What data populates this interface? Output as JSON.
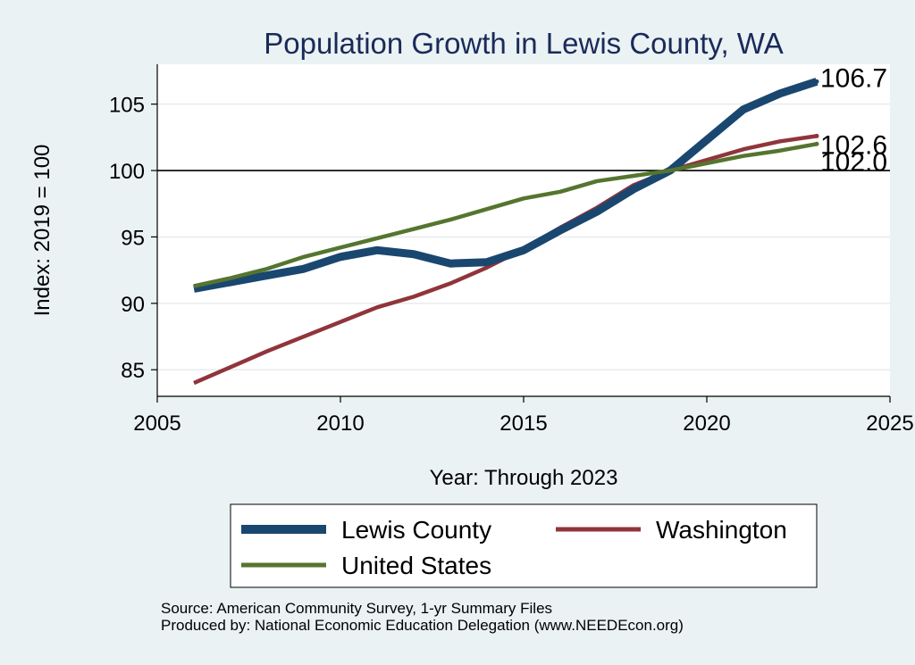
{
  "chart_data": {
    "type": "line",
    "title": "Population Growth in Lewis County, WA",
    "xlabel": "Year: Through 2023",
    "ylabel": "Index: 2019 = 100",
    "xlim": [
      2005,
      2025
    ],
    "ylim": [
      83,
      108
    ],
    "xticks": [
      2005,
      2010,
      2015,
      2020,
      2025
    ],
    "yticks": [
      85,
      90,
      95,
      100,
      105
    ],
    "grid": true,
    "reference_line": 100,
    "legend_position": "bottom",
    "x": [
      2006,
      2007,
      2008,
      2009,
      2010,
      2011,
      2012,
      2013,
      2014,
      2015,
      2016,
      2017,
      2018,
      2019,
      2021,
      2022,
      2023
    ],
    "series": [
      {
        "name": "Lewis  County",
        "color": "#1a476f",
        "values": [
          91.1,
          91.6,
          92.1,
          92.6,
          93.5,
          94.0,
          93.7,
          93.0,
          93.1,
          94.0,
          95.5,
          96.9,
          98.6,
          100.0,
          104.6,
          105.8,
          106.7
        ],
        "end_label": "106.7"
      },
      {
        "name": "Washington",
        "color": "#90353b",
        "values": [
          84.0,
          85.2,
          86.4,
          87.5,
          88.6,
          89.7,
          90.5,
          91.5,
          92.7,
          94.1,
          95.7,
          97.2,
          98.9,
          100.0,
          101.6,
          102.2,
          102.6
        ],
        "end_label": "102.6"
      },
      {
        "name": "United States",
        "color": "#55752f",
        "values": [
          91.3,
          91.9,
          92.6,
          93.5,
          94.2,
          94.9,
          95.6,
          96.3,
          97.1,
          97.9,
          98.4,
          99.2,
          99.6,
          100.0,
          101.1,
          101.5,
          102.0
        ],
        "end_label": "102.0"
      }
    ]
  },
  "footer": {
    "source": "Source: American Community Survey, 1-yr Summary Files",
    "produced": "Produced by: National Economic Education Delegation (www.NEEDEcon.org)"
  }
}
